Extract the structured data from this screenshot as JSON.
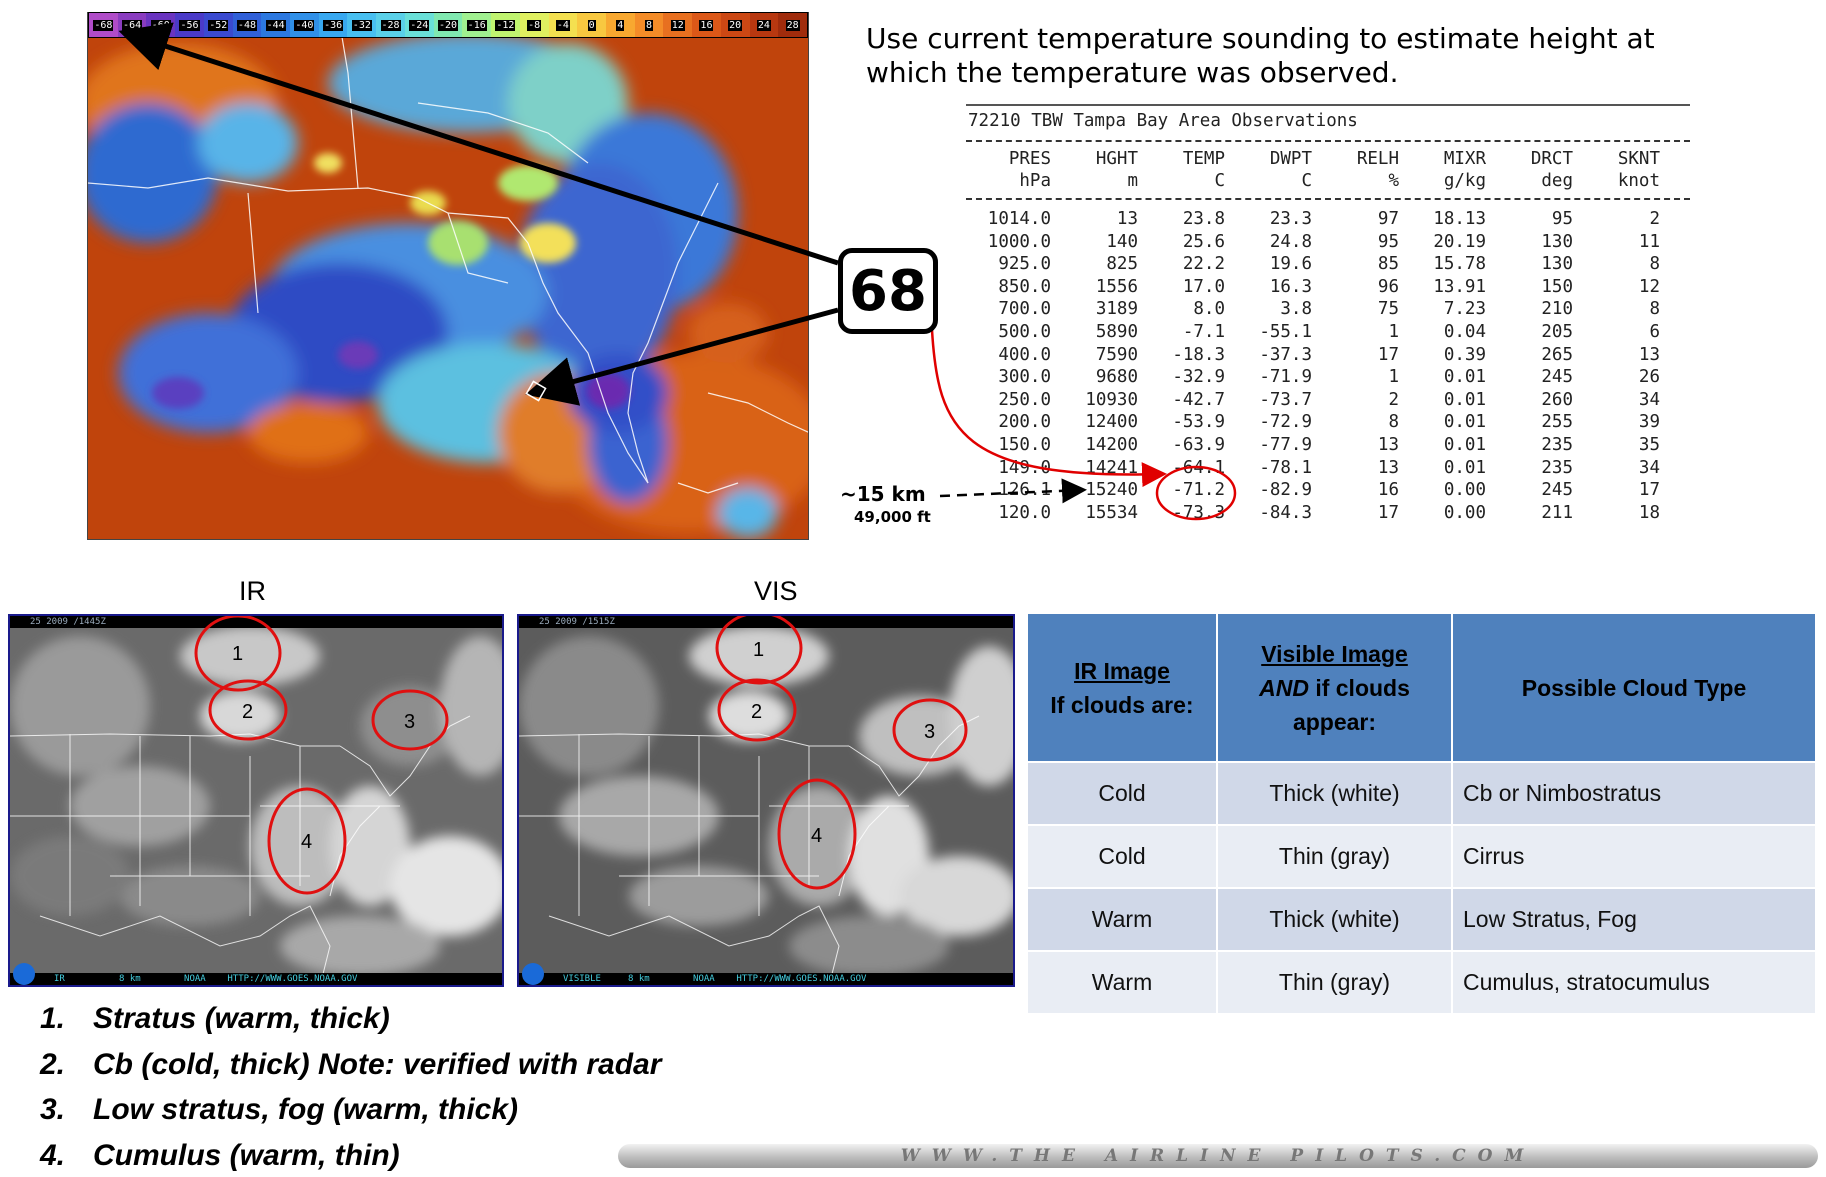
{
  "top_ir": {
    "colorbar_ticks": [
      "-68",
      "-64",
      "-60",
      "-56",
      "-52",
      "-48",
      "-44",
      "-40",
      "-36",
      "-32",
      "-28",
      "-24",
      "-20",
      "-16",
      "-12",
      "-8",
      "-4",
      "0",
      "4",
      "8",
      "12",
      "16",
      "20",
      "24",
      "28"
    ],
    "callout_value": "68",
    "height_km": "~15 km",
    "height_ft": "49,000 ft"
  },
  "instruction": "Use current temperature sounding to estimate height at\n which the temperature was observed.",
  "sounding": {
    "title": "72210 TBW Tampa Bay Area Observations",
    "columns": [
      "PRES",
      "HGHT",
      "TEMP",
      "DWPT",
      "RELH",
      "MIXR",
      "DRCT",
      "SKNT"
    ],
    "units": [
      "hPa",
      "m",
      "C",
      "C",
      "%",
      "g/kg",
      "deg",
      "knot"
    ],
    "rows": [
      [
        "1014.0",
        "13",
        "23.8",
        "23.3",
        "97",
        "18.13",
        "95",
        "2"
      ],
      [
        "1000.0",
        "140",
        "25.6",
        "24.8",
        "95",
        "20.19",
        "130",
        "11"
      ],
      [
        "925.0",
        "825",
        "22.2",
        "19.6",
        "85",
        "15.78",
        "130",
        "8"
      ],
      [
        "850.0",
        "1556",
        "17.0",
        "16.3",
        "96",
        "13.91",
        "150",
        "12"
      ],
      [
        "700.0",
        "3189",
        "8.0",
        "3.8",
        "75",
        "7.23",
        "210",
        "8"
      ],
      [
        "500.0",
        "5890",
        "-7.1",
        "-55.1",
        "1",
        "0.04",
        "205",
        "6"
      ],
      [
        "400.0",
        "7590",
        "-18.3",
        "-37.3",
        "17",
        "0.39",
        "265",
        "13"
      ],
      [
        "300.0",
        "9680",
        "-32.9",
        "-71.9",
        "1",
        "0.01",
        "245",
        "26"
      ],
      [
        "250.0",
        "10930",
        "-42.7",
        "-73.7",
        "2",
        "0.01",
        "260",
        "34"
      ],
      [
        "200.0",
        "12400",
        "-53.9",
        "-72.9",
        "8",
        "0.01",
        "255",
        "39"
      ],
      [
        "150.0",
        "14200",
        "-63.9",
        "-77.9",
        "13",
        "0.01",
        "235",
        "35"
      ],
      [
        "149.0",
        "14241",
        "-64.1",
        "-78.1",
        "13",
        "0.01",
        "235",
        "34"
      ],
      [
        "126.1",
        "15240",
        "-71.2",
        "-82.9",
        "16",
        "0.00",
        "245",
        "17"
      ],
      [
        "120.0",
        "15534",
        "-73.3",
        "-84.3",
        "17",
        "0.00",
        "211",
        "18"
      ]
    ]
  },
  "bottom": {
    "ir_label": "IR",
    "vis_label": "VIS",
    "ir_header": "25 2009 /1445Z",
    "vis_header": "25 2009 /1515Z",
    "ir_footer": "IR          8 km        NOAA    HTTP://WWW.GOES.NOAA.GOV",
    "vis_footer": "VISIBLE     8 km        NOAA    HTTP://WWW.GOES.NOAA.GOV",
    "markers": [
      "1",
      "2",
      "3",
      "4"
    ]
  },
  "cloud_table": {
    "head": {
      "ir_title": "IR Image",
      "ir_sub": "If clouds are:",
      "vis_title": "Visible Image",
      "vis_and": "AND",
      "vis_sub": " if clouds appear:",
      "type": "Possible Cloud Type"
    },
    "rows": [
      {
        "ir": "Cold",
        "vis": "Thick (white)",
        "type": "Cb or Nimbostratus"
      },
      {
        "ir": "Cold",
        "vis": "Thin (gray)",
        "type": "Cirrus"
      },
      {
        "ir": "Warm",
        "vis": "Thick (white)",
        "type": "Low Stratus, Fog"
      },
      {
        "ir": "Warm",
        "vis": "Thin (gray)",
        "type": "Cumulus, stratocumulus"
      }
    ],
    "header_color": "#4f81bd"
  },
  "findings": [
    {
      "n": "1.",
      "text": "Stratus (warm, thick)"
    },
    {
      "n": "2.",
      "text": "Cb (cold, thick) Note: verified with radar"
    },
    {
      "n": "3.",
      "text": "Low stratus, fog (warm, thick)"
    },
    {
      "n": "4.",
      "text": "Cumulus (warm, thin)"
    }
  ],
  "watermark": "WWW.THE AIRLINE PILOTS.COM"
}
